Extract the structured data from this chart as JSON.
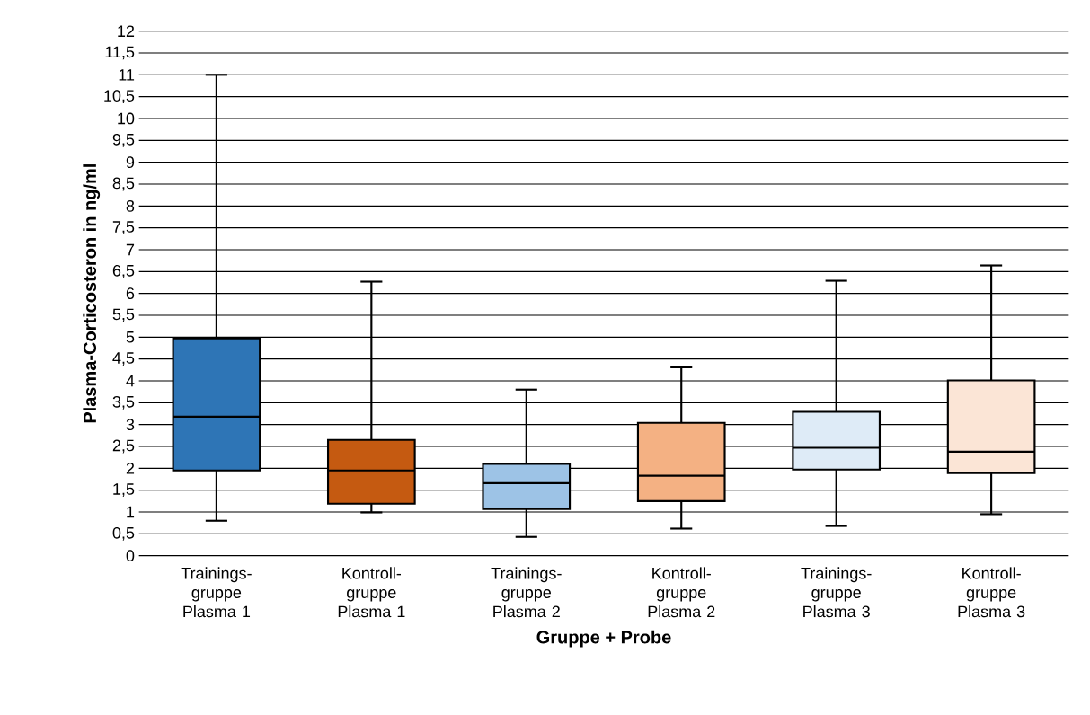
{
  "chart_data": {
    "type": "box",
    "xlabel": "Gruppe + Probe",
    "ylabel": "Plasma-Corticosteron in ng/ml",
    "categories": [
      "Trainings-gruppe Plasma 1",
      "Kontroll-gruppe Plasma 1",
      "Trainings-gruppe Plasma 2",
      "Kontroll-gruppe Plasma 2",
      "Trainings-gruppe Plasma 3",
      "Kontroll-gruppe Plasma 3"
    ],
    "colors": [
      "#2e75b6",
      "#c55a11",
      "#9dc3e6",
      "#f4b183",
      "#deebf7",
      "#fbe5d6"
    ],
    "boxes": [
      {
        "low": 0.8,
        "q1": 1.95,
        "median": 3.18,
        "q3": 4.97,
        "high": 11.0
      },
      {
        "low": 0.99,
        "q1": 1.19,
        "median": 1.95,
        "q3": 2.65,
        "high": 6.27
      },
      {
        "low": 0.43,
        "q1": 1.07,
        "median": 1.66,
        "q3": 2.1,
        "high": 3.8
      },
      {
        "low": 0.62,
        "q1": 1.25,
        "median": 1.83,
        "q3": 3.04,
        "high": 4.31
      },
      {
        "low": 0.68,
        "q1": 1.97,
        "median": 2.47,
        "q3": 3.29,
        "high": 6.29
      },
      {
        "low": 0.95,
        "q1": 1.89,
        "median": 2.38,
        "q3": 4.01,
        "high": 6.64
      }
    ],
    "ylim": [
      0,
      12
    ],
    "yticks": [
      0,
      {
        "value": 0.5,
        "label": "0,5"
      },
      1,
      {
        "value": 1.5,
        "label": "1,5"
      },
      2,
      {
        "value": 2.5,
        "label": "2,5"
      },
      3,
      {
        "value": 3.5,
        "label": "3,5"
      },
      4,
      {
        "value": 4.5,
        "label": "4,5"
      },
      5,
      {
        "value": 5.5,
        "label": "5,5"
      },
      6,
      {
        "value": 6.5,
        "label": "6,5"
      },
      7,
      {
        "value": 7.5,
        "label": "7,5"
      },
      8,
      {
        "value": 8.5,
        "label": "8,5"
      },
      9,
      {
        "value": 9.5,
        "label": "9,5"
      },
      10,
      {
        "value": 10.5,
        "label": "10,5"
      },
      11,
      {
        "value": 11.5,
        "label": "11,5"
      },
      12
    ],
    "grid": "y"
  }
}
